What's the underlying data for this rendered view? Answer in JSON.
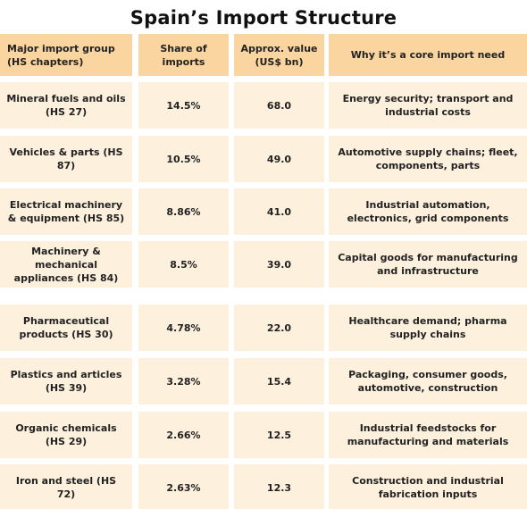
{
  "title": "Spain’s Import Structure",
  "chart_data": {
    "type": "table",
    "title": "Spain’s Import Structure",
    "columns": [
      "Major import group (HS chapters)",
      "Share of imports",
      "Approx. value (US$ bn)",
      "Why it’s a core import need"
    ],
    "rows": [
      [
        "Mineral fuels and oils (HS 27)",
        "14.5%",
        "68.0",
        "Energy security; transport and industrial costs"
      ],
      [
        "Vehicles & parts (HS 87)",
        "10.5%",
        "49.0",
        "Automotive supply chains; fleet, components, parts"
      ],
      [
        "Electrical machinery & equipment (HS 85)",
        "8.86%",
        "41.0",
        "Industrial automation, electronics, grid components"
      ],
      [
        "Machinery & mechanical appliances (HS 84)",
        "8.5%",
        "39.0",
        "Capital goods for manufacturing and infrastructure"
      ],
      [
        "Pharmaceutical products (HS 30)",
        "4.78%",
        "22.0",
        "Healthcare demand; pharma supply chains"
      ],
      [
        "Plastics and articles (HS 39)",
        "3.28%",
        "15.4",
        "Packaging, consumer goods, automotive, construction"
      ],
      [
        "Organic chemicals (HS 29)",
        "2.66%",
        "12.5",
        "Industrial feedstocks for manufacturing and materials"
      ],
      [
        "Iron and steel (HS 72)",
        "2.63%",
        "12.3",
        "Construction and industrial fabrication inputs"
      ]
    ]
  }
}
